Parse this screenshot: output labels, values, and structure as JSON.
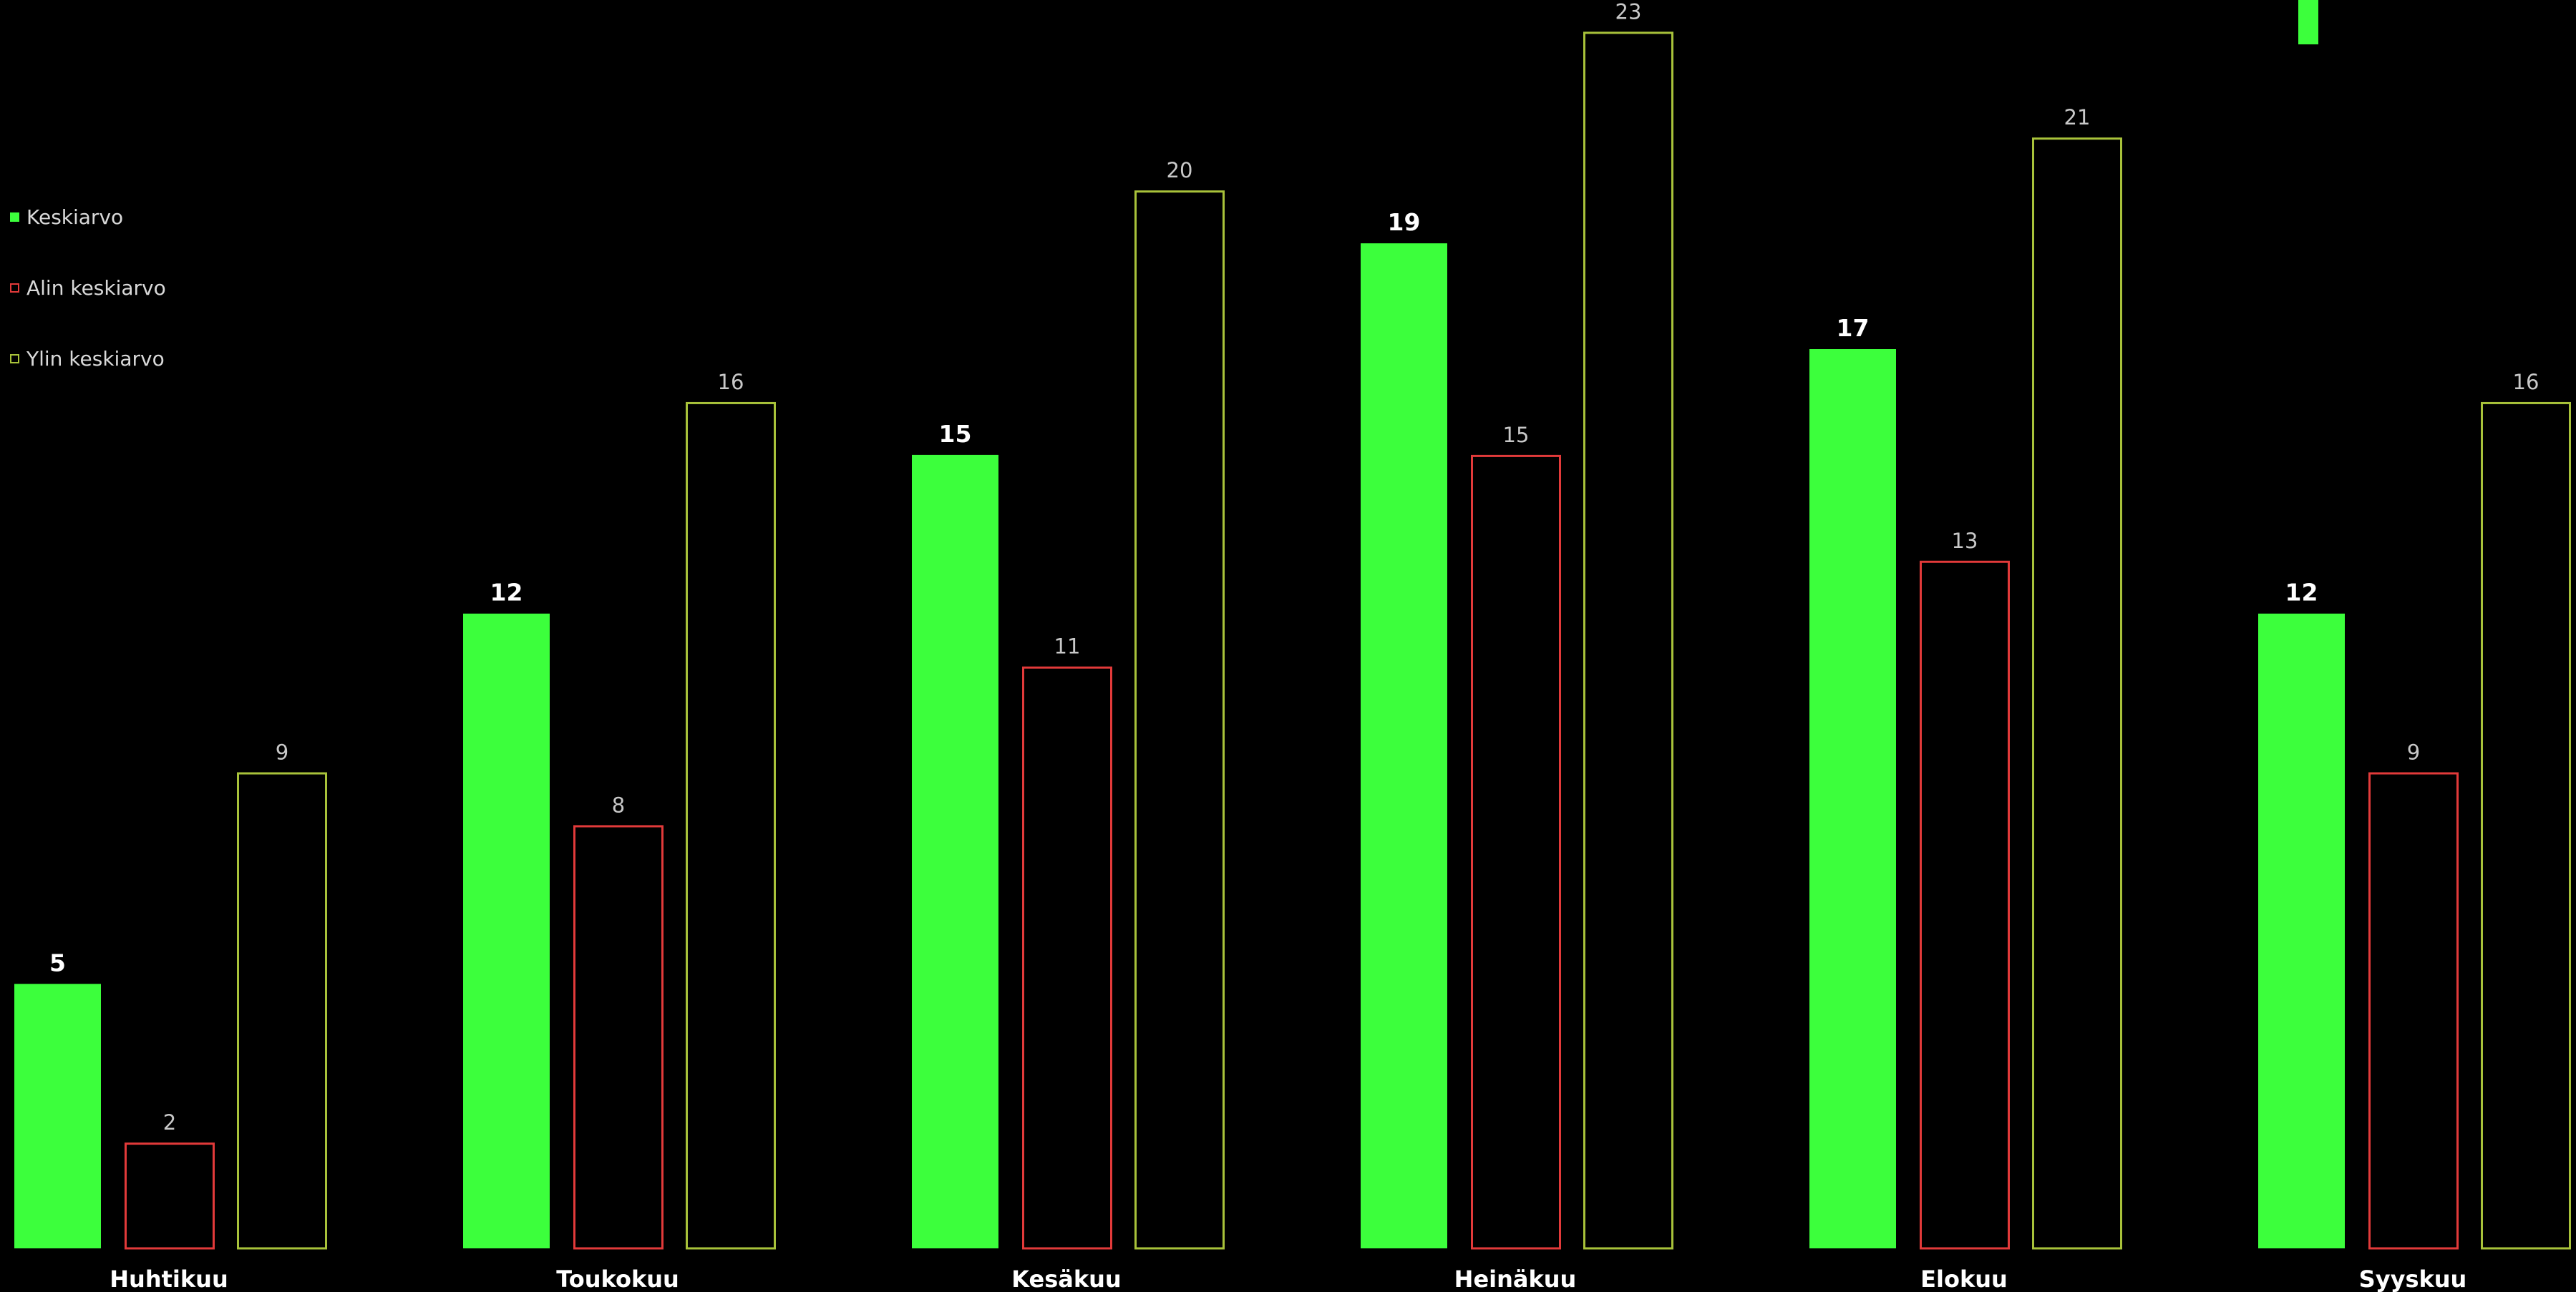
{
  "colors": {
    "background": "#000000",
    "avg": "#3cff3c",
    "min": "#e23a3a",
    "max": "#a8c23a",
    "avg_label": "#ffffff",
    "other_label": "#c8c8c8",
    "category_label": "#ffffff"
  },
  "legend": {
    "position": "left",
    "items": [
      {
        "label": "Keskiarvo",
        "style": "filled",
        "color": "#3cff3c"
      },
      {
        "label": "Alin keskiarvo",
        "style": "outline",
        "color": "#e23a3a"
      },
      {
        "label": "Ylin keskiarvo",
        "style": "outline",
        "color": "#a8c23a"
      }
    ]
  },
  "chart_data": {
    "type": "bar",
    "categories": [
      "Huhtikuu",
      "Toukokuu",
      "Kesäkuu",
      "Heinäkuu",
      "Elokuu",
      "Syyskuu"
    ],
    "series": [
      {
        "name": "Keskiarvo",
        "values": [
          5,
          12,
          15,
          19,
          17,
          12
        ]
      },
      {
        "name": "Alin keskiarvo",
        "values": [
          2,
          8,
          11,
          15,
          13,
          9
        ]
      },
      {
        "name": "Ylin keskiarvo",
        "values": [
          9,
          16,
          20,
          23,
          21,
          16
        ]
      }
    ],
    "title": "",
    "xlabel": "",
    "ylabel": "",
    "ylim": [
      0,
      23.6
    ],
    "grid": false,
    "legend_position": "left"
  }
}
